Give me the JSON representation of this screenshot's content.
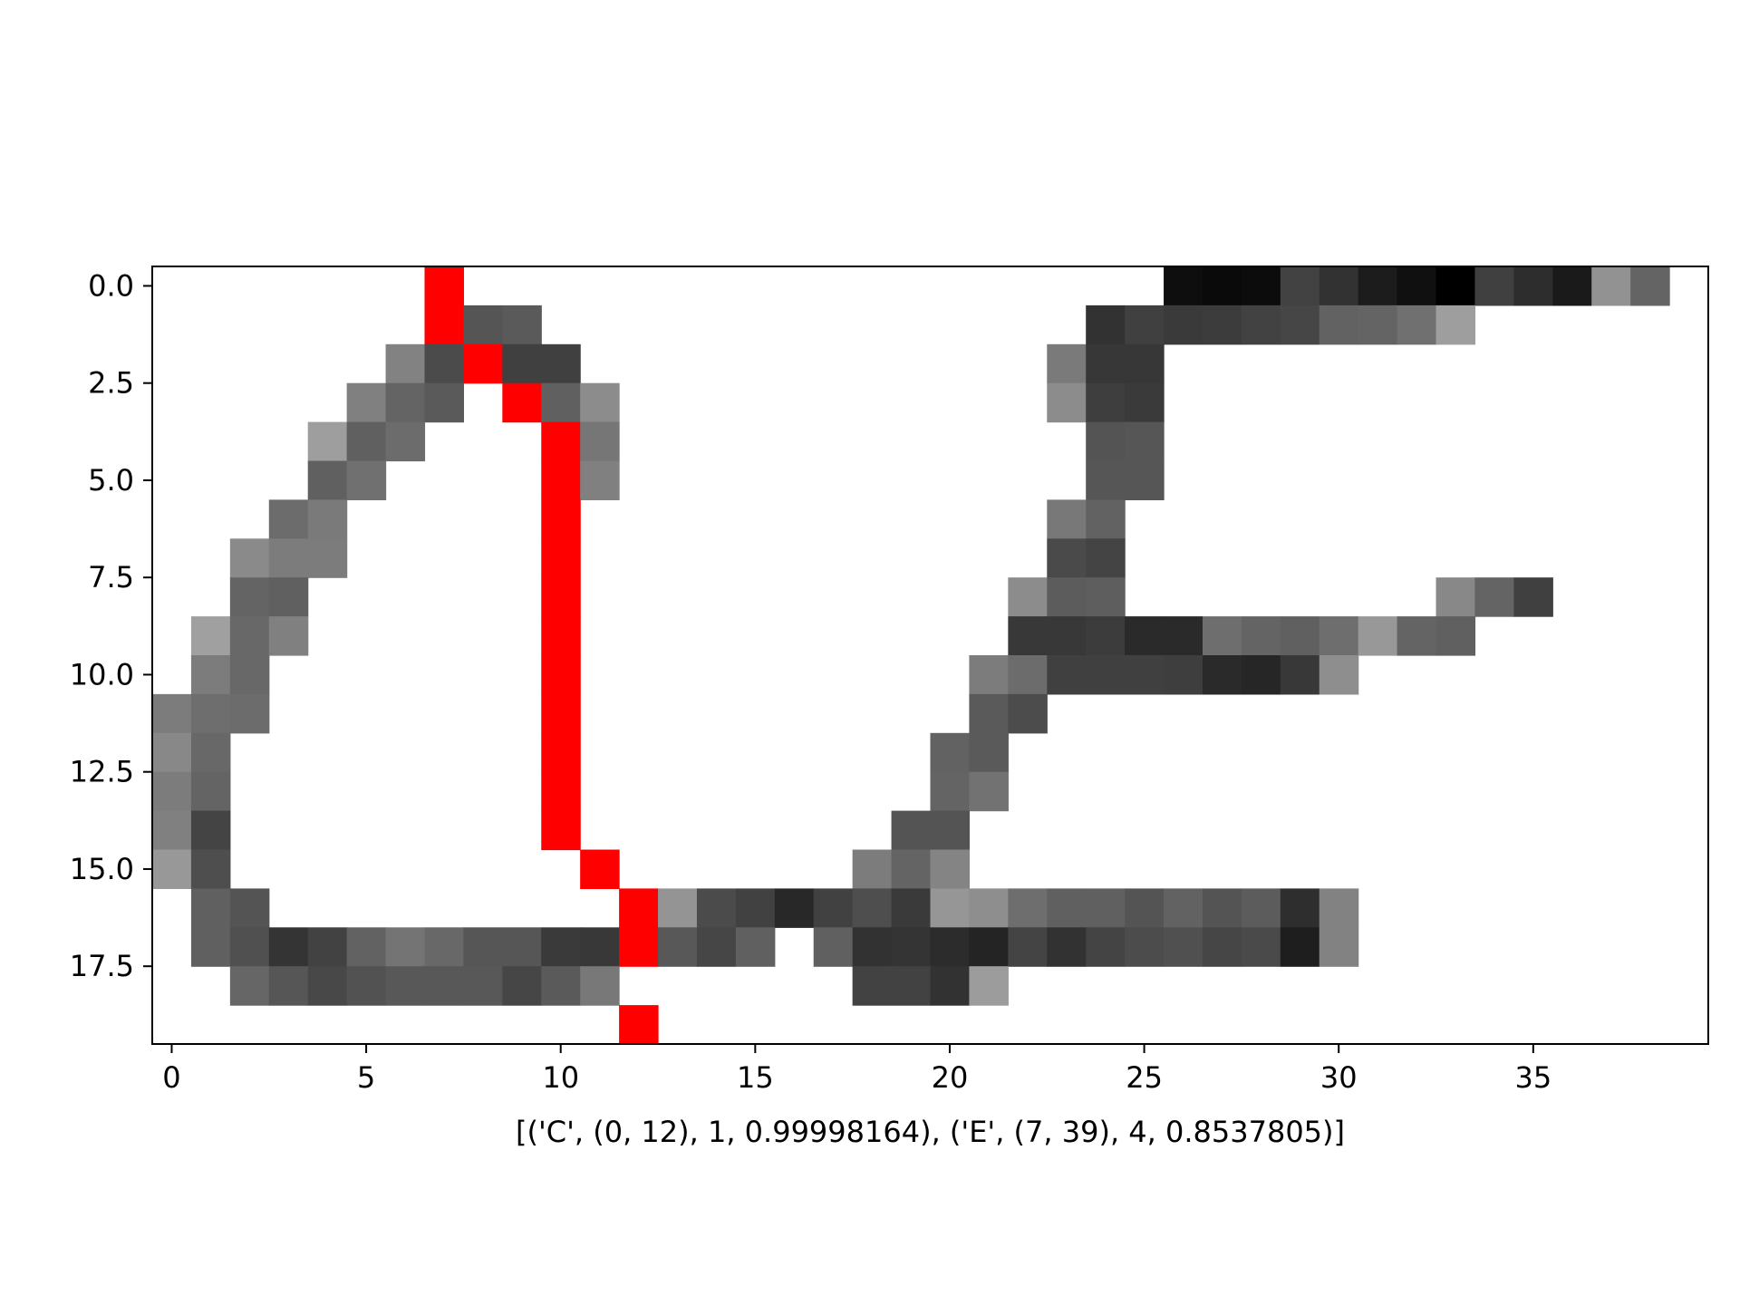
{
  "chart_data": {
    "type": "heatmap",
    "title": "",
    "xlabel": "[('C', (0, 12), 1, 0.99998164), ('E', (7, 39), 4, 0.8537805)]",
    "ylabel": "",
    "xlim": [
      -0.5,
      39.5
    ],
    "ylim": [
      19.5,
      -0.5
    ],
    "x_ticks": [
      0,
      5,
      10,
      15,
      20,
      25,
      30,
      35
    ],
    "x_tick_labels": [
      "0",
      "5",
      "10",
      "15",
      "20",
      "25",
      "30",
      "35"
    ],
    "y_ticks": [
      0,
      2.5,
      5,
      7.5,
      10,
      12.5,
      15,
      17.5
    ],
    "y_tick_labels": [
      "0.0",
      "2.5",
      "5.0",
      "7.5",
      "10.0",
      "12.5",
      "15.0",
      "17.5"
    ],
    "grid": false,
    "colormap": "gray",
    "background_color": "#ffffff",
    "highlight_color": "#ff0000",
    "grid_rows": 20,
    "grid_cols": 40,
    "note_values": "rows list [column, gray level 0-255] for non-white pixels; 'r' marks red segmentation pixels",
    "rows": [
      [
        [
          7,
          "r"
        ],
        [
          26,
          14
        ],
        [
          27,
          10
        ],
        [
          28,
          12
        ],
        [
          29,
          66
        ],
        [
          30,
          50
        ],
        [
          31,
          28
        ],
        [
          32,
          16
        ],
        [
          33,
          0
        ],
        [
          34,
          64
        ],
        [
          35,
          45
        ],
        [
          36,
          26
        ],
        [
          37,
          146
        ],
        [
          38,
          100
        ]
      ],
      [
        [
          7,
          "r"
        ],
        [
          8,
          85
        ],
        [
          9,
          90
        ],
        [
          24,
          50
        ],
        [
          25,
          64
        ],
        [
          26,
          58
        ],
        [
          27,
          60
        ],
        [
          28,
          66
        ],
        [
          29,
          70
        ],
        [
          30,
          98
        ],
        [
          31,
          100
        ],
        [
          32,
          112
        ],
        [
          33,
          158
        ]
      ],
      [
        [
          6,
          130
        ],
        [
          7,
          75
        ],
        [
          8,
          "r"
        ],
        [
          9,
          64
        ],
        [
          10,
          64
        ],
        [
          23,
          122
        ],
        [
          24,
          55
        ],
        [
          25,
          55
        ]
      ],
      [
        [
          5,
          128
        ],
        [
          6,
          100
        ],
        [
          7,
          90
        ],
        [
          9,
          "r"
        ],
        [
          10,
          96
        ],
        [
          11,
          140
        ],
        [
          23,
          140
        ],
        [
          24,
          62
        ],
        [
          25,
          58
        ]
      ],
      [
        [
          4,
          158
        ],
        [
          5,
          96
        ],
        [
          6,
          108
        ],
        [
          10,
          "r"
        ],
        [
          11,
          118
        ],
        [
          24,
          84
        ],
        [
          25,
          86
        ]
      ],
      [
        [
          4,
          96
        ],
        [
          5,
          112
        ],
        [
          10,
          "r"
        ],
        [
          11,
          128
        ],
        [
          24,
          86
        ],
        [
          25,
          86
        ]
      ],
      [
        [
          3,
          108
        ],
        [
          4,
          122
        ],
        [
          10,
          "r"
        ],
        [
          23,
          120
        ],
        [
          24,
          98
        ]
      ],
      [
        [
          2,
          138
        ],
        [
          3,
          124
        ],
        [
          4,
          124
        ],
        [
          10,
          "r"
        ],
        [
          23,
          74
        ],
        [
          24,
          68
        ]
      ],
      [
        [
          2,
          100
        ],
        [
          3,
          96
        ],
        [
          10,
          "r"
        ],
        [
          22,
          140
        ],
        [
          23,
          92
        ],
        [
          24,
          94
        ],
        [
          33,
          136
        ],
        [
          34,
          100
        ],
        [
          35,
          64
        ]
      ],
      [
        [
          1,
          160
        ],
        [
          2,
          104
        ],
        [
          3,
          128
        ],
        [
          10,
          "r"
        ],
        [
          22,
          56
        ],
        [
          23,
          56
        ],
        [
          24,
          60
        ],
        [
          25,
          42
        ],
        [
          26,
          42
        ],
        [
          27,
          110
        ],
        [
          28,
          100
        ],
        [
          29,
          96
        ],
        [
          30,
          110
        ],
        [
          31,
          152
        ],
        [
          32,
          100
        ],
        [
          33,
          96
        ]
      ],
      [
        [
          1,
          124
        ],
        [
          2,
          104
        ],
        [
          10,
          "r"
        ],
        [
          21,
          124
        ],
        [
          22,
          108
        ],
        [
          23,
          64
        ],
        [
          24,
          64
        ],
        [
          25,
          64
        ],
        [
          26,
          62
        ],
        [
          27,
          42
        ],
        [
          28,
          38
        ],
        [
          29,
          56
        ],
        [
          30,
          142
        ]
      ],
      [
        [
          0,
          124
        ],
        [
          1,
          110
        ],
        [
          2,
          108
        ],
        [
          10,
          "r"
        ],
        [
          21,
          90
        ],
        [
          22,
          76
        ]
      ],
      [
        [
          0,
          136
        ],
        [
          1,
          104
        ],
        [
          10,
          "r"
        ],
        [
          20,
          98
        ],
        [
          21,
          90
        ]
      ],
      [
        [
          0,
          124
        ],
        [
          1,
          100
        ],
        [
          10,
          "r"
        ],
        [
          20,
          100
        ],
        [
          21,
          114
        ]
      ],
      [
        [
          0,
          128
        ],
        [
          1,
          68
        ],
        [
          10,
          "r"
        ],
        [
          19,
          84
        ],
        [
          20,
          84
        ]
      ],
      [
        [
          0,
          152
        ],
        [
          1,
          78
        ],
        [
          11,
          "r"
        ],
        [
          18,
          124
        ],
        [
          19,
          100
        ],
        [
          20,
          132
        ]
      ],
      [
        [
          1,
          96
        ],
        [
          2,
          84
        ],
        [
          12,
          "r"
        ],
        [
          13,
          148
        ],
        [
          14,
          75
        ],
        [
          15,
          65
        ],
        [
          16,
          40
        ],
        [
          17,
          65
        ],
        [
          18,
          78
        ],
        [
          19,
          58
        ],
        [
          20,
          150
        ],
        [
          21,
          142
        ],
        [
          22,
          110
        ],
        [
          23,
          96
        ],
        [
          24,
          96
        ],
        [
          25,
          84
        ],
        [
          26,
          98
        ],
        [
          27,
          84
        ],
        [
          28,
          92
        ],
        [
          29,
          46
        ],
        [
          30,
          130
        ]
      ],
      [
        [
          1,
          96
        ],
        [
          2,
          80
        ],
        [
          3,
          52
        ],
        [
          4,
          66
        ],
        [
          5,
          98
        ],
        [
          6,
          116
        ],
        [
          7,
          104
        ],
        [
          8,
          86
        ],
        [
          9,
          86
        ],
        [
          10,
          58
        ],
        [
          11,
          56
        ],
        [
          12,
          "r"
        ],
        [
          13,
          88
        ],
        [
          14,
          70
        ],
        [
          15,
          96
        ],
        [
          17,
          96
        ],
        [
          18,
          50
        ],
        [
          19,
          52
        ],
        [
          20,
          44
        ],
        [
          21,
          36
        ],
        [
          22,
          68
        ],
        [
          23,
          50
        ],
        [
          24,
          68
        ],
        [
          25,
          76
        ],
        [
          26,
          80
        ],
        [
          27,
          70
        ],
        [
          28,
          74
        ],
        [
          29,
          30
        ],
        [
          30,
          130
        ]
      ],
      [
        [
          2,
          102
        ],
        [
          3,
          86
        ],
        [
          4,
          72
        ],
        [
          5,
          82
        ],
        [
          6,
          88
        ],
        [
          7,
          88
        ],
        [
          8,
          88
        ],
        [
          9,
          70
        ],
        [
          10,
          90
        ],
        [
          11,
          120
        ],
        [
          18,
          66
        ],
        [
          19,
          66
        ],
        [
          20,
          50
        ],
        [
          21,
          156
        ]
      ],
      [
        [
          12,
          "r"
        ]
      ]
    ]
  }
}
